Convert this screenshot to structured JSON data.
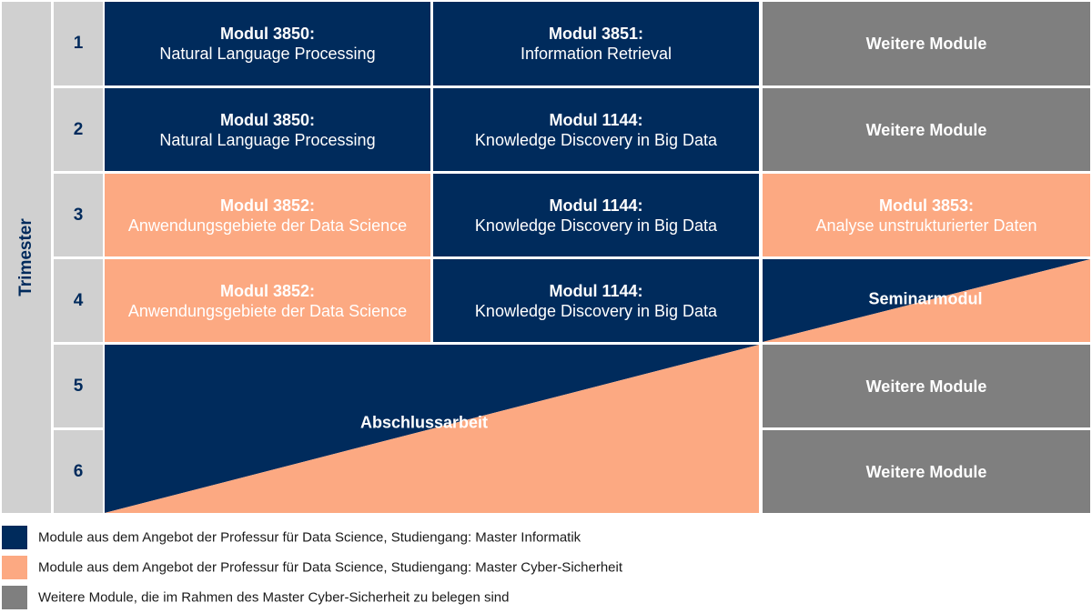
{
  "colors": {
    "informatik": "#002b5c",
    "cyber": "#fca982",
    "weitere": "#7f7f7f",
    "label_bg": "#d0d0d0",
    "number_text": "#002a5c"
  },
  "axis_label": "Trimester",
  "trimesters": [
    "1",
    "2",
    "3",
    "4",
    "5",
    "6"
  ],
  "rows": [
    {
      "col1": {
        "title": "Modul 3850:",
        "subtitle": "Natural Language Processing"
      },
      "col2": {
        "title": "Modul 3851:",
        "subtitle": "Information Retrieval"
      },
      "col3": {
        "title": "Weitere Module"
      }
    },
    {
      "col1": {
        "title": "Modul 3850:",
        "subtitle": "Natural Language Processing"
      },
      "col2": {
        "title": "Modul 1144:",
        "subtitle": "Knowledge Discovery in Big Data"
      },
      "col3": {
        "title": "Weitere Module"
      }
    },
    {
      "col1": {
        "title": "Modul 3852:",
        "subtitle": "Anwendungsgebiete der Data Science"
      },
      "col2": {
        "title": "Modul 1144:",
        "subtitle": "Knowledge Discovery in Big Data"
      },
      "col3": {
        "title": "Modul 3853:",
        "subtitle": "Analyse unstrukturierter Daten"
      }
    },
    {
      "col1": {
        "title": "Modul 3852:",
        "subtitle": "Anwendungsgebiete der Data Science"
      },
      "col2": {
        "title": "Modul 1144:",
        "subtitle": "Knowledge Discovery in Big Data"
      },
      "col3": {
        "title": "Seminarmodul"
      }
    },
    {
      "col3": {
        "title": "Weitere Module"
      }
    },
    {
      "col3": {
        "title": "Weitere Module"
      }
    }
  ],
  "abschluss": "Abschlussarbeit",
  "legend": [
    {
      "label": "Module aus dem Angebot der Professur für Data Science, Studiengang: Master Informatik"
    },
    {
      "label": "Module aus dem Angebot der Professur für Data Science, Studiengang: Master Cyber-Sicherheit"
    },
    {
      "label": "Weitere Module, die im Rahmen des Master Cyber-Sicherheit zu belegen sind"
    }
  ]
}
